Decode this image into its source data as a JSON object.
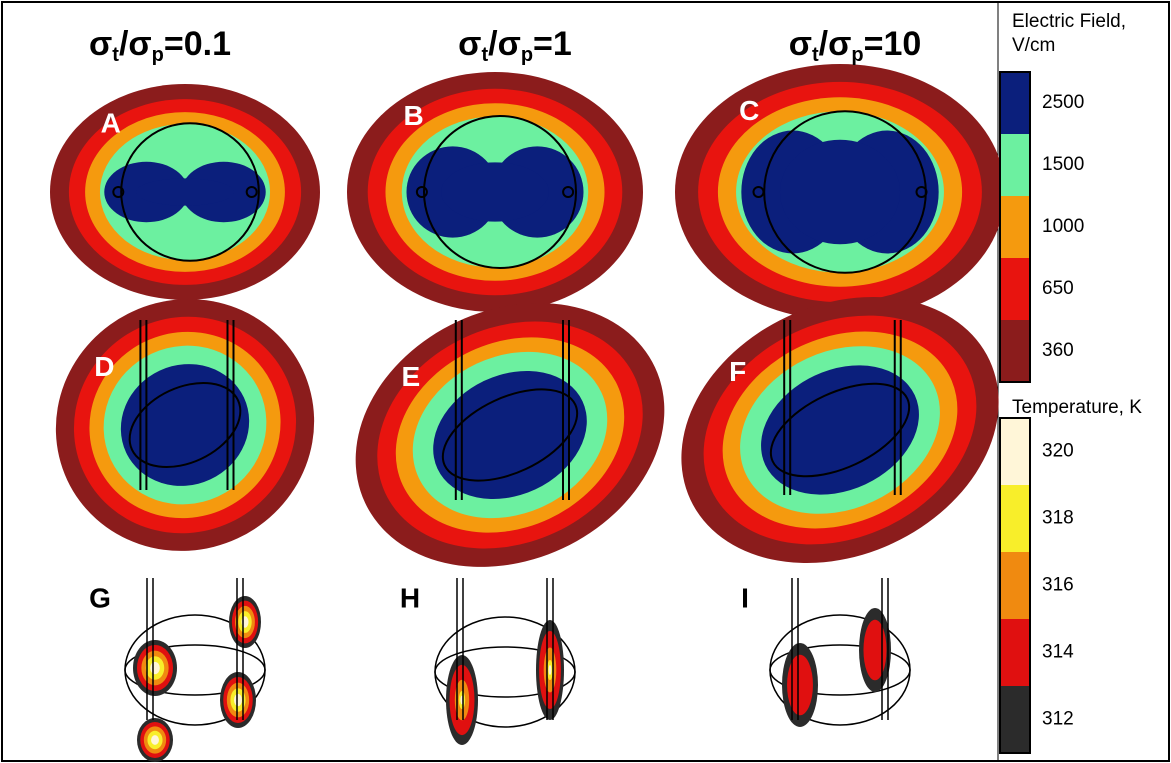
{
  "columns": [
    {
      "sym1": "σ",
      "sub1": "t",
      "slash": "/",
      "sym2": "σ",
      "sub2": "p",
      "ratio": "=0.1"
    },
    {
      "sym1": "σ",
      "sub1": "t",
      "slash": "/",
      "sym2": "σ",
      "sub2": "p",
      "ratio": "=1"
    },
    {
      "sym1": "σ",
      "sub1": "t",
      "slash": "/",
      "sym2": "σ",
      "sub2": "p",
      "ratio": "=10"
    }
  ],
  "panels": [
    "A",
    "B",
    "C",
    "D",
    "E",
    "F",
    "G",
    "H",
    "I"
  ],
  "colorbars": {
    "electric_field": {
      "title": "Electric Field,",
      "unit": "V/cm",
      "segments": [
        {
          "label": 2500,
          "color": "#0b1f7c"
        },
        {
          "label": 1500,
          "color": "#6cf0a0"
        },
        {
          "label": 1000,
          "color": "#f59a0e"
        },
        {
          "label": 650,
          "color": "#e8140f"
        },
        {
          "label": 360,
          "color": "#8b1c1c"
        }
      ]
    },
    "temperature": {
      "title": "Temperature, K",
      "segments": [
        {
          "label": 320,
          "color": "#fff6d8"
        },
        {
          "label": 318,
          "color": "#f8ee2a"
        },
        {
          "label": 316,
          "color": "#f08a10"
        },
        {
          "label": 314,
          "color": "#e01010"
        },
        {
          "label": 312,
          "color": "#2b2b2b"
        }
      ]
    }
  }
}
